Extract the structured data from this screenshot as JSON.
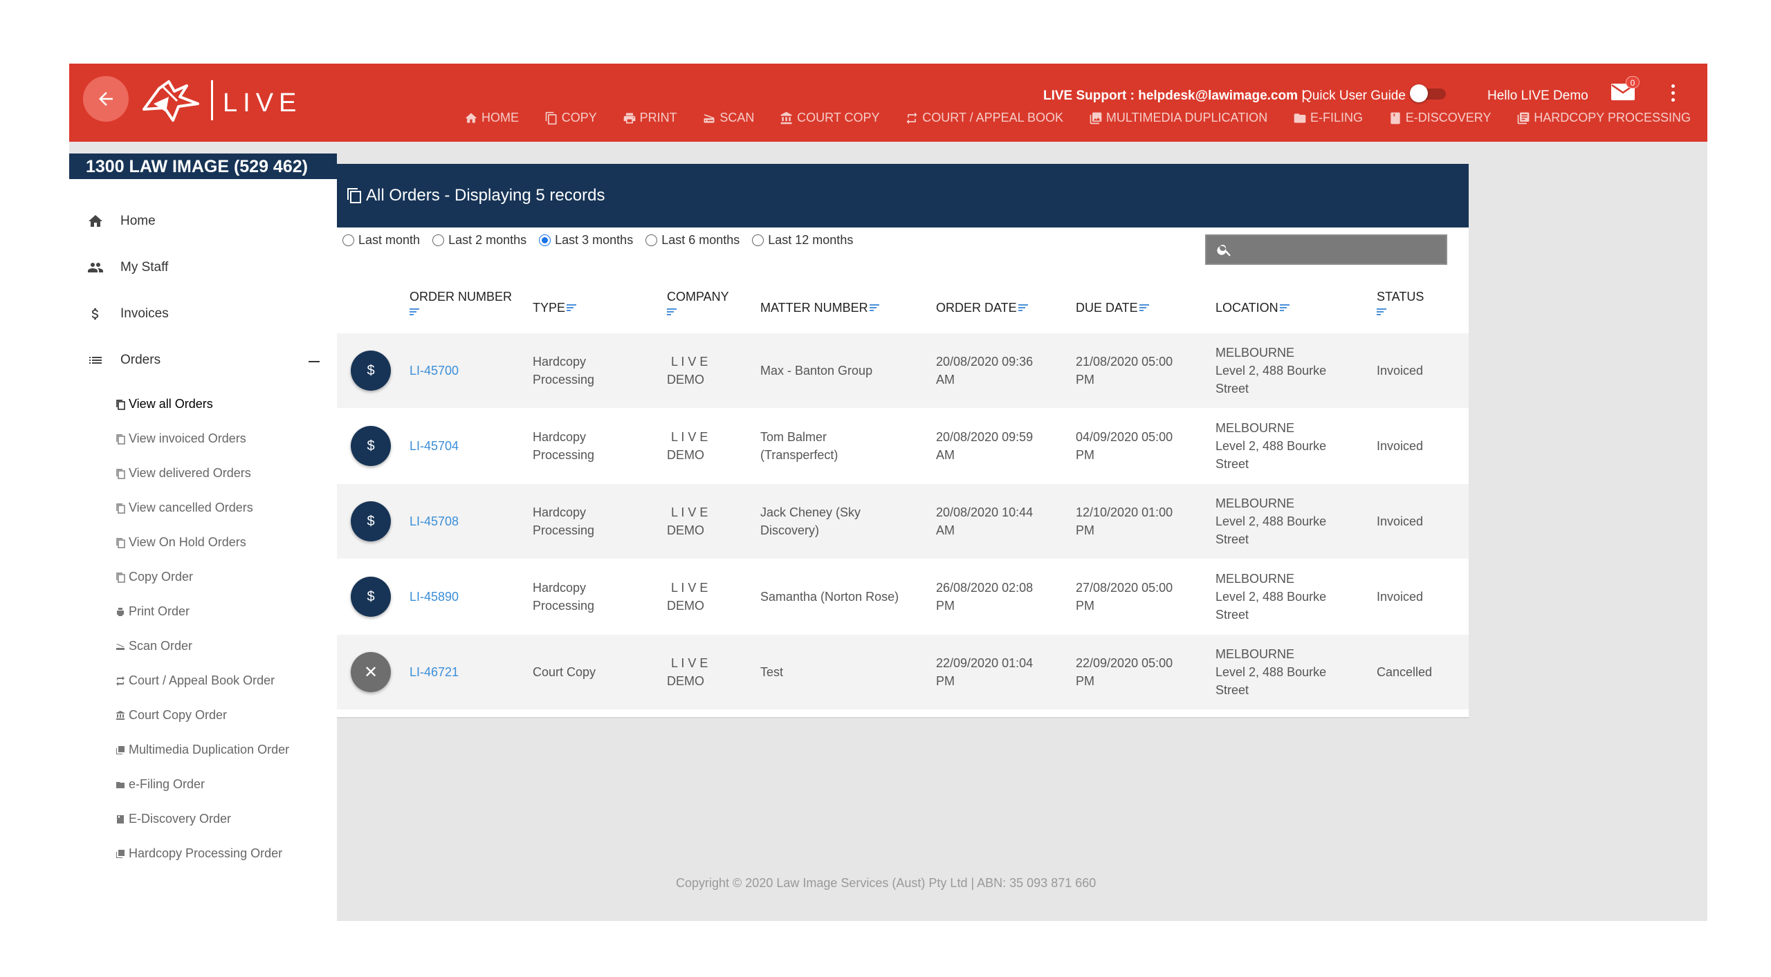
{
  "header": {
    "brand": "LIVE",
    "support_text": "LIVE Support : helpdesk@lawimage.com",
    "support_pipe": "|",
    "quick_guide": "Quick User Guide",
    "greeting": "Hello LIVE Demo",
    "mail_count": "0",
    "nav": [
      {
        "label": "HOME",
        "icon": "home-icon"
      },
      {
        "label": "COPY",
        "icon": "copy-icon"
      },
      {
        "label": "PRINT",
        "icon": "print-icon"
      },
      {
        "label": "SCAN",
        "icon": "scan-icon"
      },
      {
        "label": "COURT COPY",
        "icon": "court-icon"
      },
      {
        "label": "COURT / APPEAL BOOK",
        "icon": "repeat-icon"
      },
      {
        "label": "MULTIMEDIA DUPLICATION",
        "icon": "media-icon"
      },
      {
        "label": "E-FILING",
        "icon": "folder-icon"
      },
      {
        "label": "E-DISCOVERY",
        "icon": "book-icon"
      },
      {
        "label": "HARDCOPY PROCESSING",
        "icon": "stack-icon"
      }
    ]
  },
  "sidebar": {
    "phone": "1300 LAW IMAGE (529 462)",
    "menu": [
      {
        "label": "Home",
        "icon": "home-icon"
      },
      {
        "label": "My Staff",
        "icon": "people-icon"
      },
      {
        "label": "Invoices",
        "icon": "dollar-icon"
      },
      {
        "label": "Orders",
        "icon": "list-icon"
      }
    ],
    "orders_submenu": [
      "View all Orders",
      "View invoiced Orders",
      "View delivered Orders",
      "View cancelled Orders",
      "View On Hold Orders",
      "Copy Order",
      "Print Order",
      "Scan Order",
      "Court / Appeal Book Order",
      "Court Copy Order",
      "Multimedia Duplication Order",
      "e-Filing Order",
      "E-Discovery Order",
      "Hardcopy Processing Order"
    ]
  },
  "panel": {
    "title": "All Orders - Displaying 5 records",
    "ranges": [
      "Last month",
      "Last 2 months",
      "Last 3 months",
      "Last 6 months",
      "Last 12 months"
    ],
    "selected_range": "Last 3 months",
    "search_value": "",
    "columns": [
      "ORDER NUMBER",
      "TYPE",
      "COMPANY",
      "MATTER NUMBER",
      "ORDER DATE",
      "DUE DATE",
      "LOCATION",
      "STATUS"
    ],
    "rows": [
      {
        "action": "$",
        "order": "LI-45700",
        "type": [
          "Hardcopy",
          "Processing"
        ],
        "company": [
          "L I V E",
          "DEMO"
        ],
        "matter": [
          "Max - Banton Group"
        ],
        "order_date": [
          "20/08/2020 09:36",
          "AM"
        ],
        "due_date": [
          "21/08/2020 05:00",
          "PM"
        ],
        "location": [
          "MELBOURNE",
          "Level 2, 488 Bourke",
          "Street"
        ],
        "status": "Invoiced"
      },
      {
        "action": "$",
        "order": "LI-45704",
        "type": [
          "Hardcopy",
          "Processing"
        ],
        "company": [
          "L I V E",
          "DEMO"
        ],
        "matter": [
          "Tom Balmer",
          "(Transperfect)"
        ],
        "order_date": [
          "20/08/2020 09:59",
          "AM"
        ],
        "due_date": [
          "04/09/2020 05:00",
          "PM"
        ],
        "location": [
          "MELBOURNE",
          "Level 2, 488 Bourke",
          "Street"
        ],
        "status": "Invoiced"
      },
      {
        "action": "$",
        "order": "LI-45708",
        "type": [
          "Hardcopy",
          "Processing"
        ],
        "company": [
          "L I V E",
          "DEMO"
        ],
        "matter": [
          "Jack Cheney (Sky",
          "Discovery)"
        ],
        "order_date": [
          "20/08/2020 10:44",
          "AM"
        ],
        "due_date": [
          "12/10/2020 01:00",
          "PM"
        ],
        "location": [
          "MELBOURNE",
          "Level 2, 488 Bourke",
          "Street"
        ],
        "status": "Invoiced"
      },
      {
        "action": "$",
        "order": "LI-45890",
        "type": [
          "Hardcopy",
          "Processing"
        ],
        "company": [
          "L I V E",
          "DEMO"
        ],
        "matter": [
          "Samantha (Norton Rose)"
        ],
        "order_date": [
          "26/08/2020 02:08",
          "PM"
        ],
        "due_date": [
          "27/08/2020 05:00",
          "PM"
        ],
        "location": [
          "MELBOURNE",
          "Level 2, 488 Bourke",
          "Street"
        ],
        "status": "Invoiced"
      },
      {
        "action": "✕",
        "order": "LI-46721",
        "type": [
          "Court Copy"
        ],
        "company": [
          "L I V E",
          "DEMO"
        ],
        "matter": [
          "Test"
        ],
        "order_date": [
          "22/09/2020 01:04",
          "PM"
        ],
        "due_date": [
          "22/09/2020 05:00",
          "PM"
        ],
        "location": [
          "MELBOURNE",
          "Level 2, 488 Bourke",
          "Street"
        ],
        "status": "Cancelled"
      }
    ]
  },
  "footer": {
    "copyright": "Copyright © 2020 Law Image Services (Aust) Pty Ltd | ABN: 35 093 871 660"
  },
  "colors": {
    "header_red": "#d9392b",
    "navy": "#173456",
    "link_blue": "#3b8ed8"
  }
}
